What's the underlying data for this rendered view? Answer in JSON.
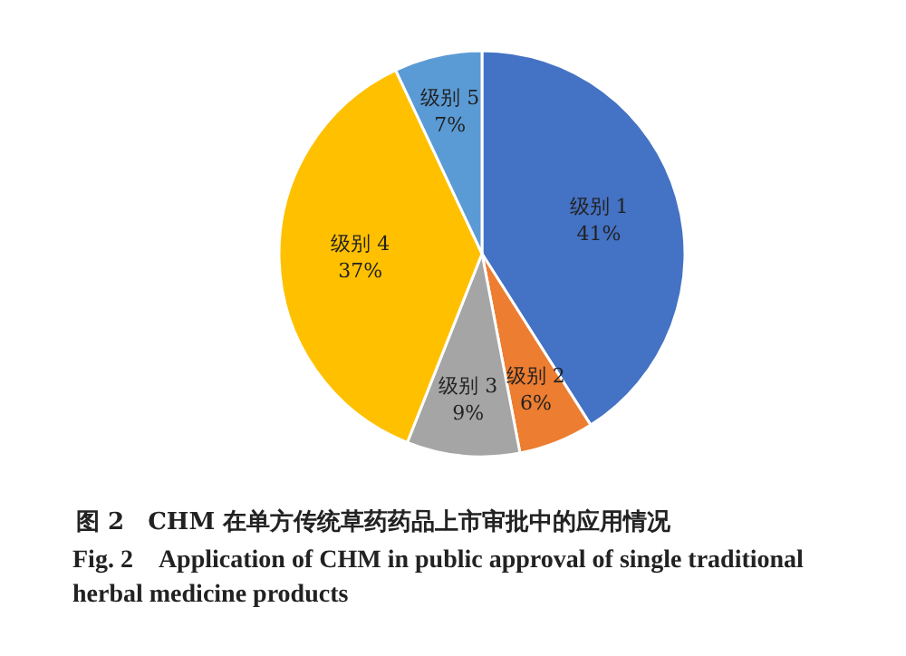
{
  "chart_data": {
    "type": "pie",
    "categories": [
      "级别 1",
      "级别 2",
      "级别 3",
      "级别 4",
      "级别 5"
    ],
    "values": [
      41,
      6,
      9,
      37,
      7
    ],
    "value_labels": [
      "41%",
      "6%",
      "9%",
      "37%",
      "7%"
    ],
    "colors": [
      "#4472c4",
      "#ed7d31",
      "#a5a5a5",
      "#ffc000",
      "#5b9bd5"
    ],
    "title": "图 2　CHM 在单方传统草药药品上市审批中的应用情况",
    "subtitle": "Fig. 2　Application of CHM in public approval of single traditional herbal medicine products",
    "legend": false
  }
}
